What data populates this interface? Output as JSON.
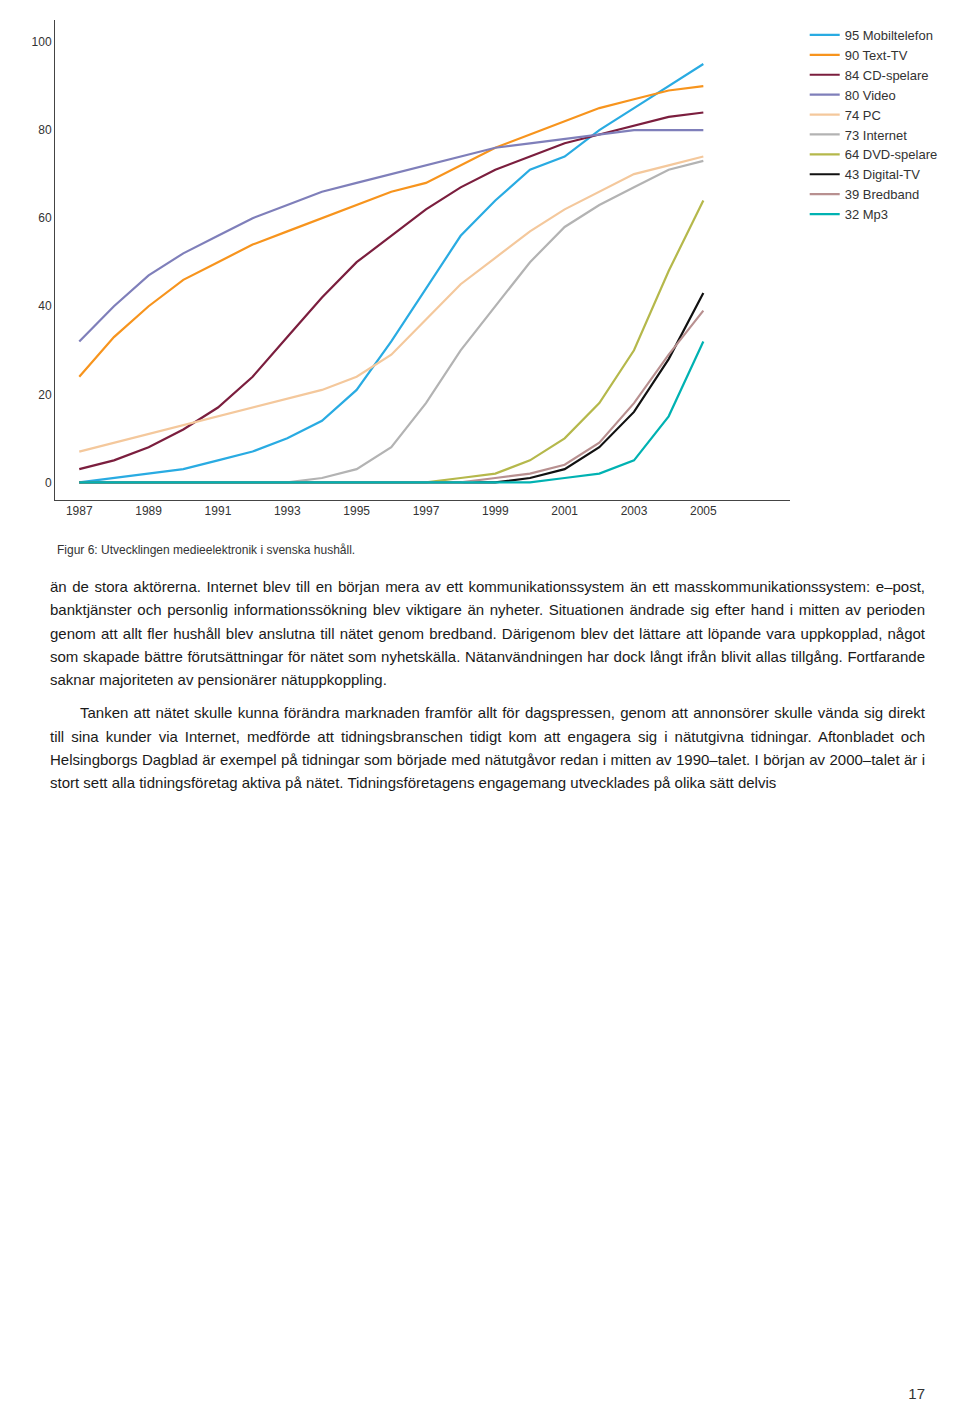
{
  "chart_data": {
    "type": "line",
    "title": "Figur 6: Utvecklingen medieelektronik i svenska hushåll.",
    "x": [
      1987,
      1988,
      1989,
      1990,
      1991,
      1992,
      1993,
      1994,
      1995,
      1996,
      1997,
      1998,
      1999,
      2000,
      2001,
      2002,
      2003,
      2004,
      2005
    ],
    "series": [
      {
        "name": "95 Mobiltelefon",
        "color": "#29abe2",
        "values": [
          0,
          1,
          2,
          3,
          5,
          7,
          10,
          14,
          21,
          32,
          44,
          56,
          64,
          71,
          74,
          80,
          85,
          90,
          95
        ]
      },
      {
        "name": "90 Text-TV",
        "color": "#f7941d",
        "values": [
          24,
          33,
          40,
          46,
          50,
          54,
          57,
          60,
          63,
          66,
          68,
          72,
          76,
          79,
          82,
          85,
          87,
          89,
          90
        ]
      },
      {
        "name": "84 CD-spelare",
        "color": "#7b1e3e",
        "values": [
          3,
          5,
          8,
          12,
          17,
          24,
          33,
          42,
          50,
          56,
          62,
          67,
          71,
          74,
          77,
          79,
          81,
          83,
          84
        ]
      },
      {
        "name": "80 Video",
        "color": "#7f7fba",
        "values": [
          32,
          40,
          47,
          52,
          56,
          60,
          63,
          66,
          68,
          70,
          72,
          74,
          76,
          77,
          78,
          79,
          80,
          80,
          80
        ]
      },
      {
        "name": "74 PC",
        "color": "#f4c89c",
        "values": [
          7,
          9,
          11,
          13,
          15,
          17,
          19,
          21,
          24,
          29,
          37,
          45,
          51,
          57,
          62,
          66,
          70,
          72,
          74
        ]
      },
      {
        "name": "73 Internet",
        "color": "#b3b3b3",
        "values": [
          0,
          0,
          0,
          0,
          0,
          0,
          0,
          1,
          3,
          8,
          18,
          30,
          40,
          50,
          58,
          63,
          67,
          71,
          73
        ]
      },
      {
        "name": "64 DVD-spelare",
        "color": "#b5b84b",
        "values": [
          0,
          0,
          0,
          0,
          0,
          0,
          0,
          0,
          0,
          0,
          0,
          1,
          2,
          5,
          10,
          18,
          30,
          48,
          64
        ]
      },
      {
        "name": "43 Digital-TV",
        "color": "#111111",
        "values": [
          0,
          0,
          0,
          0,
          0,
          0,
          0,
          0,
          0,
          0,
          0,
          0,
          0,
          1,
          3,
          8,
          16,
          28,
          43
        ]
      },
      {
        "name": "39 Bredband",
        "color": "#b89090",
        "values": [
          0,
          0,
          0,
          0,
          0,
          0,
          0,
          0,
          0,
          0,
          0,
          0,
          1,
          2,
          4,
          9,
          18,
          29,
          39
        ]
      },
      {
        "name": "32 Mp3",
        "color": "#00b2b2",
        "values": [
          0,
          0,
          0,
          0,
          0,
          0,
          0,
          0,
          0,
          0,
          0,
          0,
          0,
          0,
          1,
          2,
          5,
          15,
          32
        ]
      }
    ],
    "xlim": [
      1986.3,
      2007.5
    ],
    "ylim": [
      -4,
      105
    ],
    "xticks": [
      1987,
      1989,
      1991,
      1993,
      1995,
      1997,
      1999,
      2001,
      2003,
      2005
    ],
    "yticks": [
      0,
      20,
      40,
      60,
      80,
      100
    ],
    "grid": false,
    "legend": "right"
  },
  "text": {
    "paragraphs": [
      "än de stora aktörerna. Internet blev till en början mera av ett kommunikationssystem än ett masskommunikationssystem: e–post, banktjänster och personlig informationssökning blev viktigare än nyheter. Situationen ändrade sig efter hand i mitten av perioden genom att allt fler hushåll blev anslutna till nätet genom bredband. Därigenom blev det lättare att löpande vara uppkopplad, något som skapade bättre förutsättningar för nätet som nyhetskälla. Nätanvändningen har dock långt ifrån blivit allas tillgång. Fortfarande saknar majoriteten av pensionärer nätuppkoppling.",
      "Tanken att nätet skulle kunna förändra marknaden framför allt för dagspressen, genom att annonsörer skulle vända sig direkt till sina kunder via Internet, medförde att tidningsbranschen tidigt kom att engagera sig i nätutgivna tidningar. Aftonbladet och Helsingborgs Dagblad är exempel på tidningar som började med nätutgåvor redan i mitten av 1990–talet. I början av 2000–talet är i stort sett alla tidningsföretag aktiva på nätet. Tidningsföretagens engagemang utvecklades på olika sätt delvis"
    ],
    "page_number": "17"
  }
}
